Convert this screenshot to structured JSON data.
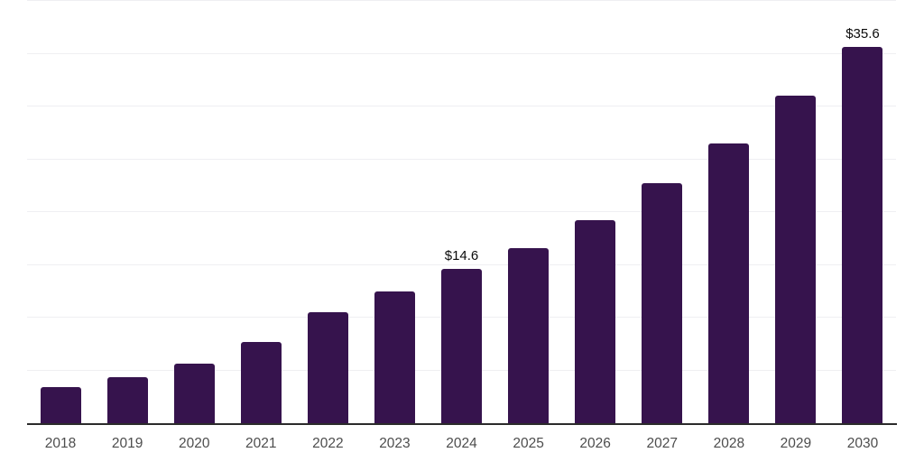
{
  "chart_data": {
    "type": "bar",
    "title": "",
    "xlabel": "",
    "ylabel": "",
    "categories": [
      "2018",
      "2019",
      "2020",
      "2021",
      "2022",
      "2023",
      "2024",
      "2025",
      "2026",
      "2027",
      "2028",
      "2029",
      "2030"
    ],
    "values": [
      3.4,
      4.4,
      5.6,
      7.7,
      10.5,
      12.5,
      14.6,
      16.6,
      19.2,
      22.7,
      26.5,
      31.0,
      35.6
    ],
    "data_labels": [
      "",
      "",
      "",
      "",
      "",
      "",
      "$14.6",
      "",
      "",
      "",
      "",
      "",
      "$35.6"
    ],
    "ylim": [
      0,
      40
    ],
    "gridline_step": 5,
    "grid": "horizontal-faint",
    "legend": "none",
    "colors": {
      "bar": "#36134d",
      "axis": "#2b2b2b",
      "gridline": "#efeff2",
      "year_label": "#4d4d4d",
      "value_label": "#0a0a0a",
      "background": "#ffffff"
    }
  }
}
